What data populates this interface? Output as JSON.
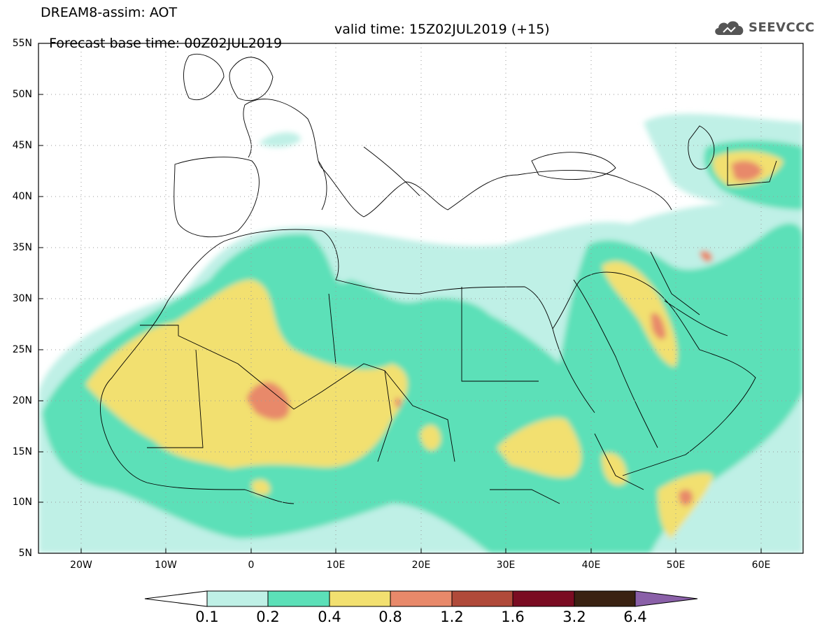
{
  "title": {
    "line1": "DREAM8-assim: AOT",
    "line2_base": "Forecast base time: 00Z02JUL2019",
    "line2_valid": "valid time: 15Z02JUL2019 (+15)"
  },
  "logo": {
    "text": "SEEVCCC",
    "icon": "cloud-icon"
  },
  "map": {
    "region": "North Africa, Europe and Middle East",
    "lat_labels": [
      "55N",
      "50N",
      "45N",
      "40N",
      "35N",
      "30N",
      "25N",
      "20N",
      "15N",
      "10N",
      "5N"
    ],
    "lon_labels": [
      "20W",
      "10W",
      "0",
      "10E",
      "20E",
      "30E",
      "40E",
      "50E",
      "60E"
    ],
    "grid": "dotted"
  },
  "colorbar": {
    "labels": [
      "0.1",
      "0.2",
      "0.4",
      "0.8",
      "1.2",
      "1.6",
      "3.2",
      "6.4"
    ],
    "colors": [
      "#ffffff",
      "#bff0e6",
      "#5ce0b8",
      "#f2e070",
      "#e8896a",
      "#b04a3a",
      "#7a0c22",
      "#3a2212",
      "#8a60a8"
    ]
  }
}
